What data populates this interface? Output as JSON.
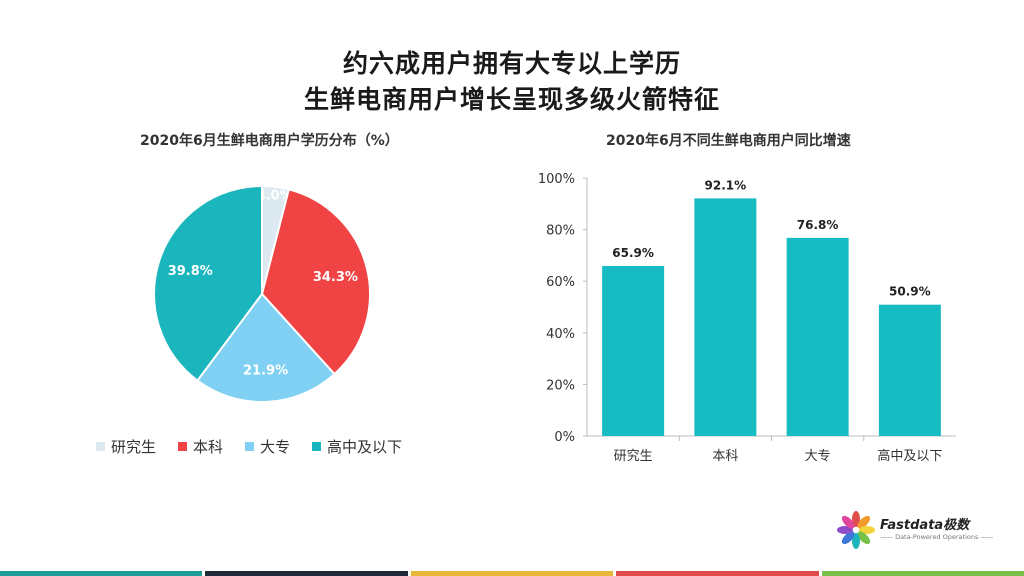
{
  "title_line1": "约六成用户拥有大专以上学历",
  "title_line2": "生鲜电商用户增长呈现多级火箭特征",
  "chart_data": [
    {
      "type": "pie",
      "title": "2020年6月生鲜电商用户学历分布（%）",
      "slices": [
        {
          "label": "研究生",
          "value": 4.0,
          "display": "4.0%",
          "color": "#dce9f0"
        },
        {
          "label": "本科",
          "value": 34.3,
          "display": "34.3%",
          "color": "#f04444"
        },
        {
          "label": "大专",
          "value": 21.9,
          "display": "21.9%",
          "color": "#7fd0f2"
        },
        {
          "label": "高中及以下",
          "value": 39.8,
          "display": "39.8%",
          "color": "#1ab5bd"
        }
      ],
      "legend_position": "bottom"
    },
    {
      "type": "bar",
      "title": "2020年6月不同生鲜电商用户同比增速",
      "categories": [
        "研究生",
        "本科",
        "大专",
        "高中及以下"
      ],
      "values": [
        65.9,
        92.1,
        76.8,
        50.9
      ],
      "value_labels": [
        "65.9%",
        "92.1%",
        "76.8%",
        "50.9%"
      ],
      "ylim": [
        0,
        100
      ],
      "yticks": [
        "0%",
        "20%",
        "40%",
        "60%",
        "80%",
        "100%"
      ],
      "color": "#17bcc2",
      "grid": false
    }
  ],
  "logo": {
    "name": "Fastdata极数",
    "tagline": "—— Data-Powered Operations ——"
  },
  "bottom_bar_colors": [
    "#1f9e98",
    "#1f2a36",
    "#e9b63b",
    "#e04c4c",
    "#79c24a"
  ]
}
